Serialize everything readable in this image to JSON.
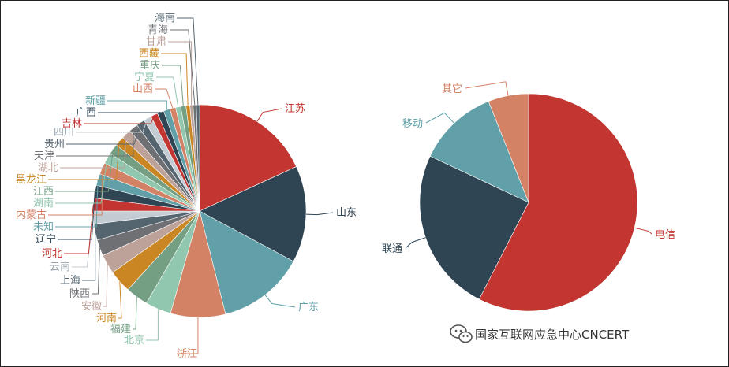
{
  "chart_data": [
    {
      "type": "pie",
      "slices": [
        {
          "label": "江苏",
          "value": 18.5,
          "color": "#c23531"
        },
        {
          "label": "山东",
          "value": 15.0,
          "color": "#2f4554"
        },
        {
          "label": "广东",
          "value": 13.5,
          "color": "#61a0a8"
        },
        {
          "label": "浙江",
          "value": 8.5,
          "color": "#d48265"
        },
        {
          "label": "北京",
          "value": 4.0,
          "color": "#91c7ae"
        },
        {
          "label": "福建",
          "value": 3.5,
          "color": "#749f83"
        },
        {
          "label": "河南",
          "value": 3.5,
          "color": "#ca8622"
        },
        {
          "label": "安徽",
          "value": 3.0,
          "color": "#bda29a"
        },
        {
          "label": "陕西",
          "value": 2.5,
          "color": "#6e7074"
        },
        {
          "label": "上海",
          "value": 2.5,
          "color": "#546570"
        },
        {
          "label": "云南",
          "value": 2.0,
          "color": "#c4ccd3"
        },
        {
          "label": "河北",
          "value": 2.0,
          "color": "#c23531"
        },
        {
          "label": "辽宁",
          "value": 2.0,
          "color": "#2f4554"
        },
        {
          "label": "未知",
          "value": 1.8,
          "color": "#61a0a8"
        },
        {
          "label": "内蒙古",
          "value": 1.8,
          "color": "#d48265"
        },
        {
          "label": "湖南",
          "value": 1.7,
          "color": "#91c7ae"
        },
        {
          "label": "江西",
          "value": 1.6,
          "color": "#749f83"
        },
        {
          "label": "黑龙江",
          "value": 1.5,
          "color": "#ca8622"
        },
        {
          "label": "湖北",
          "value": 1.5,
          "color": "#bda29a"
        },
        {
          "label": "天津",
          "value": 1.4,
          "color": "#6e7074"
        },
        {
          "label": "贵州",
          "value": 1.3,
          "color": "#546570"
        },
        {
          "label": "四川",
          "value": 1.2,
          "color": "#c4ccd3"
        },
        {
          "label": "吉林",
          "value": 1.1,
          "color": "#c23531"
        },
        {
          "label": "广西",
          "value": 1.0,
          "color": "#2f4554"
        },
        {
          "label": "新疆",
          "value": 1.0,
          "color": "#61a0a8"
        },
        {
          "label": "山西",
          "value": 0.9,
          "color": "#d48265"
        },
        {
          "label": "宁夏",
          "value": 0.8,
          "color": "#91c7ae"
        },
        {
          "label": "重庆",
          "value": 0.8,
          "color": "#749f83"
        },
        {
          "label": "西藏",
          "value": 0.6,
          "color": "#ca8622"
        },
        {
          "label": "甘肃",
          "value": 0.5,
          "color": "#bda29a"
        },
        {
          "label": "青海",
          "value": 0.5,
          "color": "#6e7074"
        },
        {
          "label": "海南",
          "value": 0.5,
          "color": "#546570"
        }
      ]
    },
    {
      "type": "pie",
      "slices": [
        {
          "label": "电信",
          "value": 57.5,
          "color": "#c23531"
        },
        {
          "label": "联通",
          "value": 24.5,
          "color": "#2f4554"
        },
        {
          "label": "移动",
          "value": 12.0,
          "color": "#61a0a8"
        },
        {
          "label": "其它",
          "value": 6.0,
          "color": "#d48265"
        }
      ]
    }
  ],
  "watermark": {
    "text": "国家互联网应急中心CNCERT",
    "icon": "wechat-icon"
  }
}
